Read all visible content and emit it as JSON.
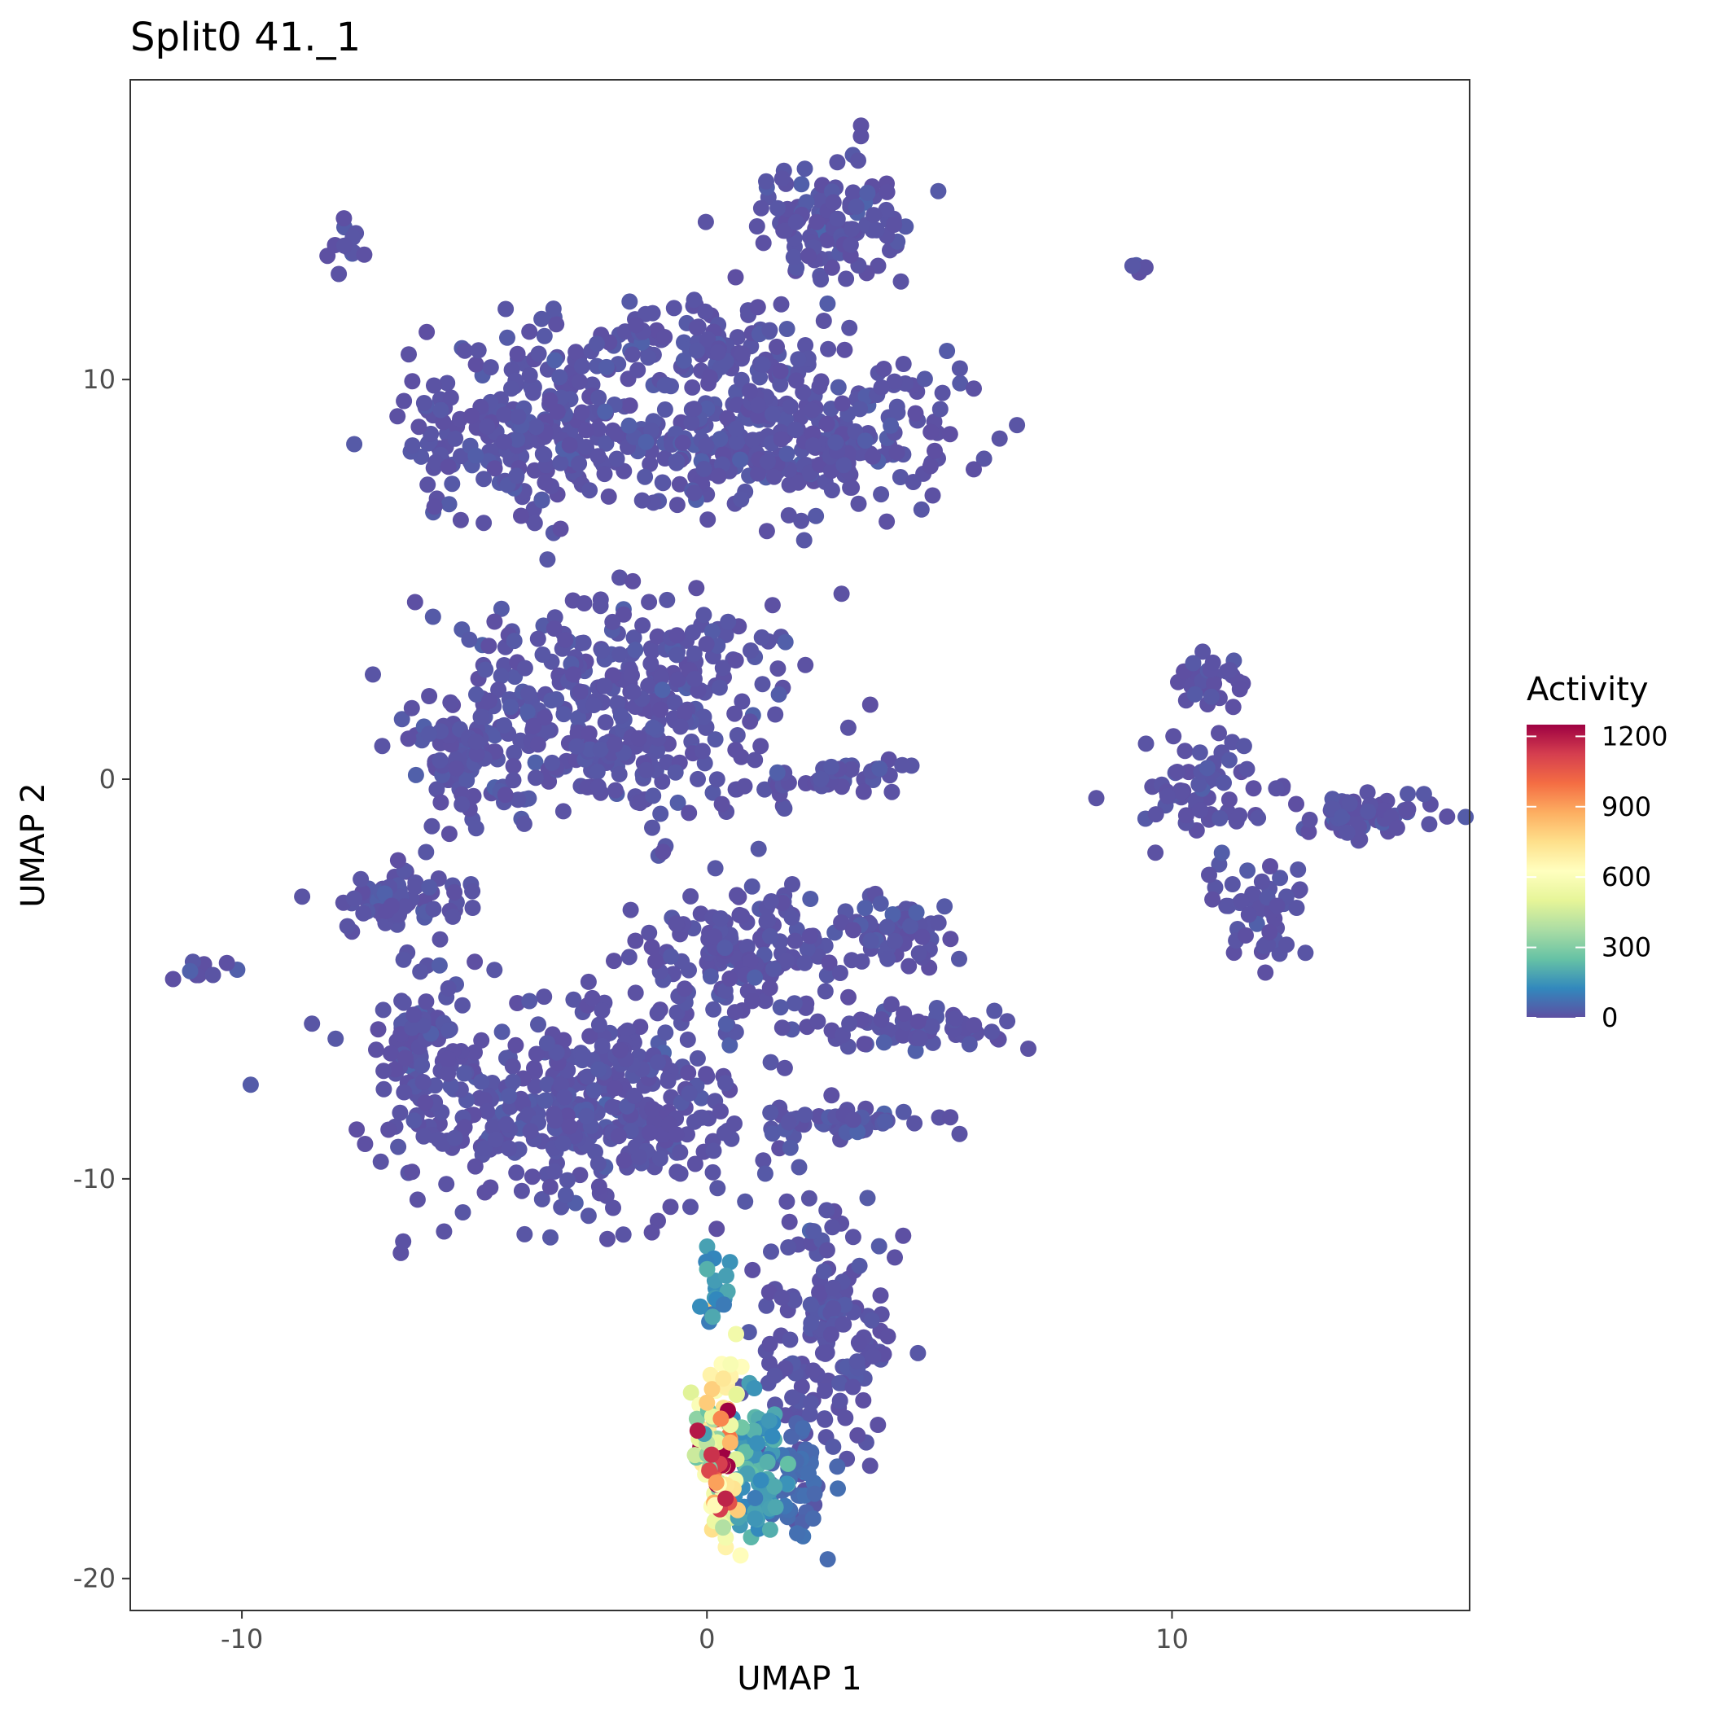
{
  "chart_data": {
    "type": "scatter",
    "title": "Split0 41._1",
    "xlabel": "UMAP 1",
    "ylabel": "UMAP 2",
    "xlim": [
      -12.4,
      16.4
    ],
    "ylim": [
      -20.8,
      17.5
    ],
    "x_ticks": [
      -10,
      0,
      10
    ],
    "x_tick_labels": [
      "-10",
      "0",
      "10"
    ],
    "y_ticks": [
      10,
      0,
      -10,
      -20
    ],
    "y_tick_labels": [
      "10",
      "0",
      "-10",
      "-20"
    ],
    "grid": false,
    "legend": {
      "title": "Activity",
      "position": "right",
      "type": "colorbar",
      "range": [
        0,
        1250
      ],
      "ticks": [
        0,
        300,
        600,
        900,
        1200
      ],
      "tick_labels": [
        "0",
        "300",
        "600",
        "900",
        "1200"
      ],
      "colors": [
        "#5E4FA2",
        "#3288BD",
        "#66C2A5",
        "#ABDDA4",
        "#E6F598",
        "#FFFFBF",
        "#FEE08B",
        "#FDAE61",
        "#F46D43",
        "#D53E4F",
        "#9E0142"
      ]
    },
    "clusters": [
      {
        "x": 1.5,
        "y": 8.5,
        "sx": 2.6,
        "sy": 1.1,
        "n": 340,
        "v": 0
      },
      {
        "x": -4.0,
        "y": 8.6,
        "sx": 1.6,
        "sy": 1.3,
        "n": 220,
        "v": 0
      },
      {
        "x": 2.7,
        "y": 13.8,
        "sx": 0.9,
        "sy": 1.1,
        "n": 110,
        "v": 0
      },
      {
        "x": 0.0,
        "y": 10.8,
        "sx": 2.3,
        "sy": 0.7,
        "n": 120,
        "v": 0
      },
      {
        "x": -1.8,
        "y": 1.8,
        "sx": 2.4,
        "sy": 1.7,
        "n": 360,
        "v": 0
      },
      {
        "x": -5.2,
        "y": 0.5,
        "sx": 0.8,
        "sy": 1.0,
        "n": 80,
        "v": 0
      },
      {
        "x": -6.6,
        "y": -3.0,
        "sx": 1.0,
        "sy": 0.5,
        "n": 70,
        "v": 0
      },
      {
        "x": -2.5,
        "y": -8.0,
        "sx": 2.6,
        "sy": 1.6,
        "n": 380,
        "v": 0
      },
      {
        "x": -6.0,
        "y": -7.0,
        "sx": 0.6,
        "sy": 1.6,
        "n": 100,
        "v": 0
      },
      {
        "x": 0.8,
        "y": -4.3,
        "sx": 1.4,
        "sy": 1.0,
        "n": 140,
        "v": 0
      },
      {
        "x": 4.0,
        "y": -3.8,
        "sx": 0.9,
        "sy": 0.5,
        "n": 60,
        "v": 0
      },
      {
        "x": 4.8,
        "y": -6.2,
        "sx": 1.2,
        "sy": 0.3,
        "n": 60,
        "v": 0
      },
      {
        "x": 3.0,
        "y": -8.6,
        "sx": 1.3,
        "sy": 0.3,
        "n": 50,
        "v": 0
      },
      {
        "x": 2.6,
        "y": 0.0,
        "sx": 1.3,
        "sy": 0.25,
        "n": 40,
        "v": 0
      },
      {
        "x": 2.6,
        "y": -14.0,
        "sx": 0.9,
        "sy": 2.2,
        "n": 160,
        "v": 0
      },
      {
        "x": 1.8,
        "y": -17.6,
        "sx": 0.5,
        "sy": 1.1,
        "n": 60,
        "v": 60
      },
      {
        "x": 1.0,
        "y": -17.2,
        "sx": 0.35,
        "sy": 1.3,
        "n": 70,
        "v": 180
      },
      {
        "x": 0.3,
        "y": -16.6,
        "sx": 0.3,
        "sy": 1.6,
        "n": 55,
        "v": 650
      },
      {
        "x": 0.25,
        "y": -17.2,
        "sx": 0.2,
        "sy": 0.9,
        "n": 20,
        "v": 1000
      },
      {
        "x": 0.2,
        "y": -13.0,
        "sx": 0.25,
        "sy": 0.9,
        "n": 18,
        "v": 150
      },
      {
        "x": 0.1,
        "y": -16.5,
        "sx": 0.25,
        "sy": 0.6,
        "n": 20,
        "v": 420
      },
      {
        "x": 10.8,
        "y": 2.6,
        "sx": 0.5,
        "sy": 0.4,
        "n": 30,
        "v": 0
      },
      {
        "x": 10.7,
        "y": -0.3,
        "sx": 1.0,
        "sy": 1.0,
        "n": 60,
        "v": 0
      },
      {
        "x": 11.8,
        "y": -3.2,
        "sx": 0.6,
        "sy": 0.8,
        "n": 50,
        "v": 0
      },
      {
        "x": 14.2,
        "y": -0.9,
        "sx": 0.9,
        "sy": 0.35,
        "n": 55,
        "v": 0
      },
      {
        "x": 9.3,
        "y": 12.8,
        "sx": 0.1,
        "sy": 0.1,
        "n": 5,
        "v": 0
      },
      {
        "x": -7.7,
        "y": 13.3,
        "sx": 0.25,
        "sy": 0.4,
        "n": 12,
        "v": 0
      },
      {
        "x": -11.0,
        "y": -4.8,
        "sx": 0.4,
        "sy": 0.15,
        "n": 10,
        "v": 0
      }
    ],
    "highlight_points": [
      {
        "x": 0.45,
        "y": -15.8,
        "v": 1250
      },
      {
        "x": -0.2,
        "y": -16.3,
        "v": 1200
      },
      {
        "x": 0.1,
        "y": -16.9,
        "v": 1150
      },
      {
        "x": 0.05,
        "y": -17.3,
        "v": 1100
      },
      {
        "x": 0.4,
        "y": -18.0,
        "v": 1180
      },
      {
        "x": 0.3,
        "y": -16.0,
        "v": 950
      },
      {
        "x": 0.2,
        "y": -17.6,
        "v": 900
      },
      {
        "x": 0.0,
        "y": -15.6,
        "v": 800
      },
      {
        "x": 0.5,
        "y": -16.6,
        "v": 850
      },
      {
        "x": 0.35,
        "y": -15.0,
        "v": 720
      }
    ]
  }
}
